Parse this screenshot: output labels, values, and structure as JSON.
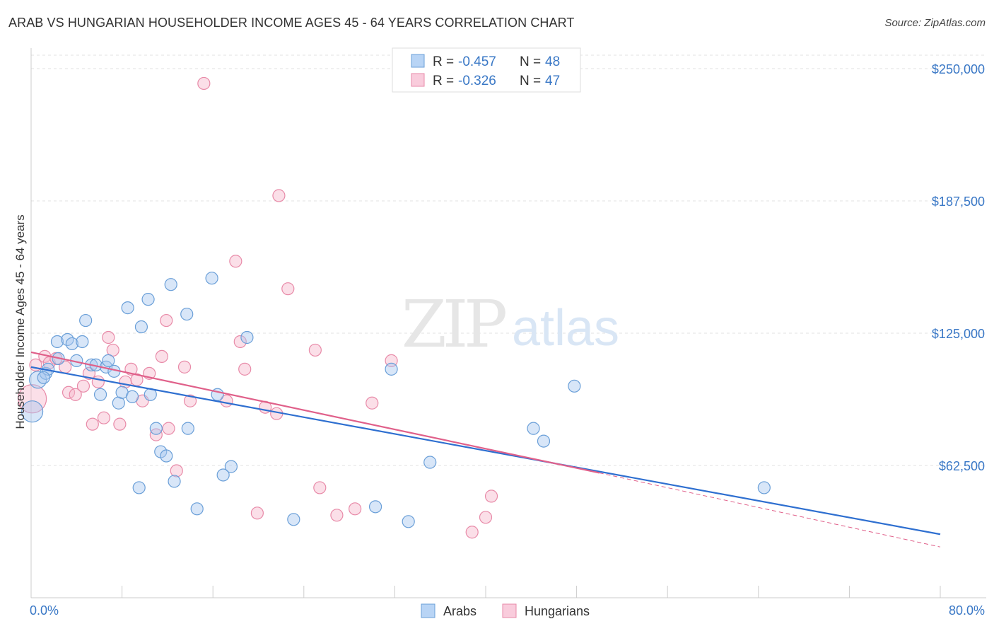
{
  "header": {
    "title": "ARAB VS HUNGARIAN HOUSEHOLDER INCOME AGES 45 - 64 YEARS CORRELATION CHART",
    "source": "Source: ZipAtlas.com"
  },
  "watermark": {
    "zip": "ZIP",
    "atlas": "atlas"
  },
  "legend": {
    "rows": [
      {
        "r_label": "R = ",
        "r_value": "-0.457",
        "n_label": "N = ",
        "n_value": "48",
        "color": "#a8c8f0",
        "stroke": "#6a9fd8"
      },
      {
        "r_label": "R = ",
        "r_value": "-0.326",
        "n_label": "N = ",
        "n_value": "47",
        "color": "#f7b8cc",
        "stroke": "#e88aa8"
      }
    ]
  },
  "bottom_legend": {
    "items": [
      "Arabs",
      "Hungarians"
    ]
  },
  "chart_data": {
    "type": "scatter",
    "title": "ARAB VS HUNGARIAN HOUSEHOLDER INCOME AGES 45 - 64 YEARS CORRELATION CHART",
    "xlabel": "",
    "ylabel": "Householder Income Ages 45 - 64 years",
    "xlim": [
      0,
      80
    ],
    "ylim": [
      0,
      262500
    ],
    "x_tick_labels": [
      "0.0%",
      "80.0%"
    ],
    "y_ticks": [
      62500,
      125000,
      187500,
      250000
    ],
    "y_tick_labels": [
      "$62,500",
      "$125,000",
      "$187,500",
      "$250,000"
    ],
    "grid": true,
    "legend_position": "top-center",
    "colors": {
      "arabs": "#6a9fd8",
      "arabs_fill": "#a8c8f0",
      "arabs_line": "#2e6fd0",
      "hungarians": "#e88aa8",
      "hungarians_fill": "#f7b8cc",
      "hungarians_line": "#e0608a"
    },
    "series": [
      {
        "name": "Arabs",
        "points": [
          [
            0.1,
            88000
          ],
          [
            0.6,
            103000
          ],
          [
            1.3,
            106000
          ],
          [
            1.5,
            108000
          ],
          [
            2.3,
            121000
          ],
          [
            3.2,
            122000
          ],
          [
            3.6,
            120000
          ],
          [
            4.5,
            121000
          ],
          [
            4.8,
            131000
          ],
          [
            5.3,
            110000
          ],
          [
            5.7,
            110000
          ],
          [
            6.1,
            96000
          ],
          [
            6.6,
            109000
          ],
          [
            6.8,
            112000
          ],
          [
            7.3,
            107000
          ],
          [
            7.7,
            92000
          ],
          [
            8.0,
            97000
          ],
          [
            8.5,
            137000
          ],
          [
            8.9,
            95000
          ],
          [
            9.5,
            52000
          ],
          [
            9.7,
            128000
          ],
          [
            10.3,
            141000
          ],
          [
            10.5,
            96000
          ],
          [
            11.0,
            80000
          ],
          [
            11.4,
            69000
          ],
          [
            11.9,
            67000
          ],
          [
            12.3,
            148000
          ],
          [
            12.6,
            55000
          ],
          [
            13.7,
            134000
          ],
          [
            13.8,
            80000
          ],
          [
            14.6,
            42000
          ],
          [
            15.9,
            151000
          ],
          [
            16.4,
            96000
          ],
          [
            16.9,
            58000
          ],
          [
            17.6,
            62000
          ],
          [
            19.0,
            123000
          ],
          [
            23.1,
            37000
          ],
          [
            30.3,
            43000
          ],
          [
            31.7,
            108000
          ],
          [
            33.2,
            36000
          ],
          [
            35.1,
            64000
          ],
          [
            44.2,
            80000
          ],
          [
            45.1,
            74000
          ],
          [
            47.8,
            100000
          ],
          [
            64.5,
            52000
          ],
          [
            2.4,
            113000
          ],
          [
            4.0,
            112000
          ],
          [
            1.1,
            104000
          ]
        ],
        "trend": [
          [
            0,
            109000
          ],
          [
            80,
            30000
          ]
        ]
      },
      {
        "name": "Hungarians",
        "points": [
          [
            0.1,
            94000
          ],
          [
            0.4,
            110000
          ],
          [
            1.2,
            114000
          ],
          [
            1.6,
            111000
          ],
          [
            2.2,
            113000
          ],
          [
            3.0,
            109000
          ],
          [
            3.3,
            97000
          ],
          [
            3.9,
            96000
          ],
          [
            4.6,
            100000
          ],
          [
            5.1,
            106000
          ],
          [
            5.4,
            82000
          ],
          [
            5.9,
            102000
          ],
          [
            6.4,
            85000
          ],
          [
            6.8,
            123000
          ],
          [
            7.2,
            117000
          ],
          [
            7.8,
            82000
          ],
          [
            8.3,
            102000
          ],
          [
            8.8,
            108000
          ],
          [
            9.3,
            103000
          ],
          [
            9.8,
            93000
          ],
          [
            10.4,
            106000
          ],
          [
            11.0,
            77000
          ],
          [
            11.5,
            114000
          ],
          [
            11.9,
            131000
          ],
          [
            12.1,
            80000
          ],
          [
            12.8,
            60000
          ],
          [
            13.5,
            109000
          ],
          [
            14.0,
            93000
          ],
          [
            15.2,
            243000
          ],
          [
            17.2,
            93000
          ],
          [
            18.0,
            159000
          ],
          [
            18.4,
            121000
          ],
          [
            18.8,
            108000
          ],
          [
            19.9,
            40000
          ],
          [
            20.6,
            90000
          ],
          [
            21.6,
            87000
          ],
          [
            21.8,
            190000
          ],
          [
            22.6,
            146000
          ],
          [
            25.0,
            117000
          ],
          [
            25.4,
            52000
          ],
          [
            26.9,
            39000
          ],
          [
            28.5,
            42000
          ],
          [
            30.0,
            92000
          ],
          [
            31.7,
            112000
          ],
          [
            38.8,
            31000
          ],
          [
            40.0,
            38000
          ],
          [
            40.5,
            48000
          ]
        ],
        "trend": [
          [
            0,
            116000
          ],
          [
            50,
            59000
          ]
        ],
        "trend_dashed": [
          [
            50,
            59000
          ],
          [
            80,
            24000
          ]
        ]
      }
    ]
  }
}
